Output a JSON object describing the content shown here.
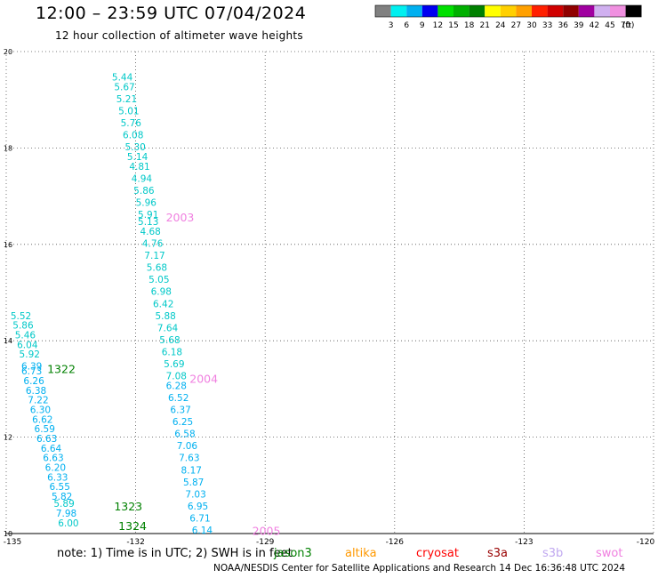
{
  "header": {
    "title": "12:00 – 23:59 UTC 07/04/2024",
    "subtitle": "12 hour collection of altimeter wave heights"
  },
  "colorbar": {
    "labels": [
      "3",
      "6",
      "9",
      "12",
      "15",
      "18",
      "21",
      "24",
      "27",
      "30",
      "33",
      "36",
      "39",
      "42",
      "45",
      "70"
    ],
    "unit": "(ft)",
    "colors": [
      "#808080",
      "#00f0f0",
      "#00b0f0",
      "#0000f0",
      "#00e000",
      "#00b000",
      "#008000",
      "#ffff00",
      "#ffd000",
      "#ffa000",
      "#ff2000",
      "#d00000",
      "#900000",
      "#a000a0",
      "#d0b0f0",
      "#f090e0",
      "#000000"
    ]
  },
  "note": {
    "text": "note:  1) Time is in UTC;  2) SWH is in feet",
    "satellites": [
      {
        "name": "jason3",
        "color": "#008000"
      },
      {
        "name": "altika",
        "color": "#ff9900"
      },
      {
        "name": "cryosat",
        "color": "#ff0000"
      },
      {
        "name": "s3a",
        "color": "#990000"
      },
      {
        "name": "s3b",
        "color": "#c0a8f0"
      },
      {
        "name": "swot",
        "color": "#f080e0"
      }
    ]
  },
  "footer": {
    "text": "NOAA/NESDIS Center for Satellite Applications and Research    14 Dec 16:36:48 UTC 2024"
  },
  "chart_data": {
    "type": "scatter",
    "title": "12:00 – 23:59 UTC 07/04/2024",
    "xlim": [
      -135,
      -120
    ],
    "ylim": [
      10,
      20
    ],
    "x_ticks": [
      "-135",
      "-132",
      "-129",
      "-126",
      "-123",
      "-120"
    ],
    "y_ticks": [
      "10",
      "12",
      "14",
      "16",
      "18",
      "20"
    ],
    "grid": true,
    "passes": [
      {
        "satellite": "swot",
        "color": "#f080e0",
        "points": [
          {
            "lon": -132.55,
            "lat": 19.4,
            "swh": 5.44,
            "color": "#00c8c8"
          },
          {
            "lon": -132.5,
            "lat": 19.2,
            "swh": 5.67,
            "color": "#00c8c8"
          },
          {
            "lon": -132.45,
            "lat": 18.95,
            "swh": 5.21,
            "color": "#00c8c8"
          },
          {
            "lon": -132.4,
            "lat": 18.7,
            "swh": 5.01,
            "color": "#00c8c8"
          },
          {
            "lon": -132.35,
            "lat": 18.45,
            "swh": 5.76,
            "color": "#00c8c8"
          },
          {
            "lon": -132.3,
            "lat": 18.2,
            "swh": 6.08,
            "color": "#00c8c8"
          },
          {
            "lon": -132.25,
            "lat": 17.95,
            "swh": 5.3,
            "color": "#00c8c8"
          },
          {
            "lon": -132.2,
            "lat": 17.75,
            "swh": 5.14,
            "color": "#00c8c8"
          },
          {
            "lon": -132.15,
            "lat": 17.55,
            "swh": 4.81,
            "color": "#00c8c8"
          },
          {
            "lon": -132.1,
            "lat": 17.3,
            "swh": 4.94,
            "color": "#00c8c8"
          },
          {
            "lon": -132.05,
            "lat": 17.05,
            "swh": 5.86,
            "color": "#00c8c8"
          },
          {
            "lon": -132.0,
            "lat": 16.8,
            "swh": 5.96,
            "color": "#00c8c8"
          },
          {
            "lon": -131.95,
            "lat": 16.55,
            "swh": 5.91,
            "color": "#00c8c8"
          },
          {
            "lon": -131.95,
            "lat": 16.4,
            "swh": 5.13,
            "color": "#00c8c8"
          },
          {
            "lon": -131.9,
            "lat": 16.2,
            "swh": 4.68,
            "color": "#00c8c8"
          },
          {
            "lon": -131.85,
            "lat": 15.95,
            "swh": 4.76,
            "color": "#00c8c8"
          },
          {
            "lon": -131.8,
            "lat": 15.7,
            "swh": 7.17,
            "color": "#00c8c8"
          },
          {
            "lon": -131.75,
            "lat": 15.45,
            "swh": 5.68,
            "color": "#00c8c8"
          },
          {
            "lon": -131.7,
            "lat": 15.2,
            "swh": 5.05,
            "color": "#00c8c8"
          },
          {
            "lon": -131.65,
            "lat": 14.95,
            "swh": 6.98,
            "color": "#00c8c8"
          },
          {
            "lon": -131.6,
            "lat": 14.7,
            "swh": 6.42,
            "color": "#00c8c8"
          },
          {
            "lon": -131.55,
            "lat": 14.45,
            "swh": 5.88,
            "color": "#00c8c8"
          },
          {
            "lon": -131.5,
            "lat": 14.2,
            "swh": 7.64,
            "color": "#00c8c8"
          },
          {
            "lon": -131.45,
            "lat": 13.95,
            "swh": 5.68,
            "color": "#00c8c8"
          },
          {
            "lon": -131.4,
            "lat": 13.7,
            "swh": 6.18,
            "color": "#00c8c8"
          },
          {
            "lon": -131.35,
            "lat": 13.45,
            "swh": 5.69,
            "color": "#00c8c8"
          },
          {
            "lon": -131.3,
            "lat": 13.2,
            "swh": 7.08,
            "color": "#00c8c8"
          },
          {
            "lon": -131.3,
            "lat": 13.0,
            "swh": 6.28,
            "color": "#00b0f0"
          },
          {
            "lon": -131.25,
            "lat": 12.75,
            "swh": 6.52,
            "color": "#00b0f0"
          },
          {
            "lon": -131.2,
            "lat": 12.5,
            "swh": 6.37,
            "color": "#00b0f0"
          },
          {
            "lon": -131.15,
            "lat": 12.25,
            "swh": 6.25,
            "color": "#00b0f0"
          },
          {
            "lon": -131.1,
            "lat": 12.0,
            "swh": 6.58,
            "color": "#00b0f0"
          },
          {
            "lon": -131.05,
            "lat": 11.75,
            "swh": 7.06,
            "color": "#00b0f0"
          },
          {
            "lon": -131.0,
            "lat": 11.5,
            "swh": 7.63,
            "color": "#00b0f0"
          },
          {
            "lon": -130.95,
            "lat": 11.25,
            "swh": 8.17,
            "color": "#00b0f0"
          },
          {
            "lon": -130.9,
            "lat": 11.0,
            "swh": 5.87,
            "color": "#00b0f0"
          },
          {
            "lon": -130.85,
            "lat": 10.75,
            "swh": 7.03,
            "color": "#00b0f0"
          },
          {
            "lon": -130.8,
            "lat": 10.5,
            "swh": 6.95,
            "color": "#00b0f0"
          },
          {
            "lon": -130.75,
            "lat": 10.25,
            "swh": 6.71,
            "color": "#00b0f0"
          },
          {
            "lon": -130.7,
            "lat": 10.0,
            "swh": 6.14,
            "color": "#00b0f0"
          }
        ],
        "time_labels": [
          {
            "text": "2003",
            "lon": -131.3,
            "lat": 16.55
          },
          {
            "text": "2004",
            "lon": -130.75,
            "lat": 13.2
          },
          {
            "text": "2005",
            "lon": -129.3,
            "lat": 10.05
          }
        ]
      },
      {
        "satellite": "jason3",
        "color": "#008000",
        "points": [
          {
            "lon": -134.9,
            "lat": 14.45,
            "swh": 5.52,
            "color": "#00c8c8"
          },
          {
            "lon": -134.85,
            "lat": 14.25,
            "swh": 5.86,
            "color": "#00c8c8"
          },
          {
            "lon": -134.8,
            "lat": 14.05,
            "swh": 5.46,
            "color": "#00c8c8"
          },
          {
            "lon": -134.75,
            "lat": 13.85,
            "swh": 6.04,
            "color": "#00c8c8"
          },
          {
            "lon": -134.7,
            "lat": 13.65,
            "swh": 5.92,
            "color": "#00c8c8"
          },
          {
            "lon": -134.65,
            "lat": 13.4,
            "swh": 6.39,
            "color": "#00b0f0"
          },
          {
            "lon": -134.65,
            "lat": 13.3,
            "swh": 6.73,
            "color": "#00b0f0"
          },
          {
            "lon": -134.6,
            "lat": 13.1,
            "swh": 6.26,
            "color": "#00b0f0"
          },
          {
            "lon": -134.55,
            "lat": 12.9,
            "swh": 6.38,
            "color": "#00b0f0"
          },
          {
            "lon": -134.5,
            "lat": 12.7,
            "swh": 7.22,
            "color": "#00b0f0"
          },
          {
            "lon": -134.45,
            "lat": 12.5,
            "swh": 6.3,
            "color": "#00b0f0"
          },
          {
            "lon": -134.4,
            "lat": 12.3,
            "swh": 6.62,
            "color": "#00b0f0"
          },
          {
            "lon": -134.35,
            "lat": 12.1,
            "swh": 6.59,
            "color": "#00b0f0"
          },
          {
            "lon": -134.3,
            "lat": 11.9,
            "swh": 6.63,
            "color": "#00b0f0"
          },
          {
            "lon": -134.2,
            "lat": 11.7,
            "swh": 6.64,
            "color": "#00b0f0"
          },
          {
            "lon": -134.15,
            "lat": 11.5,
            "swh": 6.63,
            "color": "#00b0f0"
          },
          {
            "lon": -134.1,
            "lat": 11.3,
            "swh": 6.2,
            "color": "#00b0f0"
          },
          {
            "lon": -134.05,
            "lat": 11.1,
            "swh": 6.33,
            "color": "#00b0f0"
          },
          {
            "lon": -134.0,
            "lat": 10.9,
            "swh": 6.55,
            "color": "#00b0f0"
          },
          {
            "lon": -133.95,
            "lat": 10.7,
            "swh": 5.82,
            "color": "#00b0f0"
          },
          {
            "lon": -133.9,
            "lat": 10.55,
            "swh": 5.89,
            "color": "#00c8c8"
          },
          {
            "lon": -133.85,
            "lat": 10.35,
            "swh": 7.98,
            "color": "#00b0f0"
          },
          {
            "lon": -133.8,
            "lat": 10.15,
            "swh": 6.0,
            "color": "#00c8c8"
          }
        ],
        "time_labels": [
          {
            "text": "1322",
            "lon": -134.05,
            "lat": 13.4
          },
          {
            "text": "1323",
            "lon": -132.5,
            "lat": 10.55
          },
          {
            "text": "1324",
            "lon": -132.4,
            "lat": 10.15
          }
        ]
      }
    ]
  }
}
